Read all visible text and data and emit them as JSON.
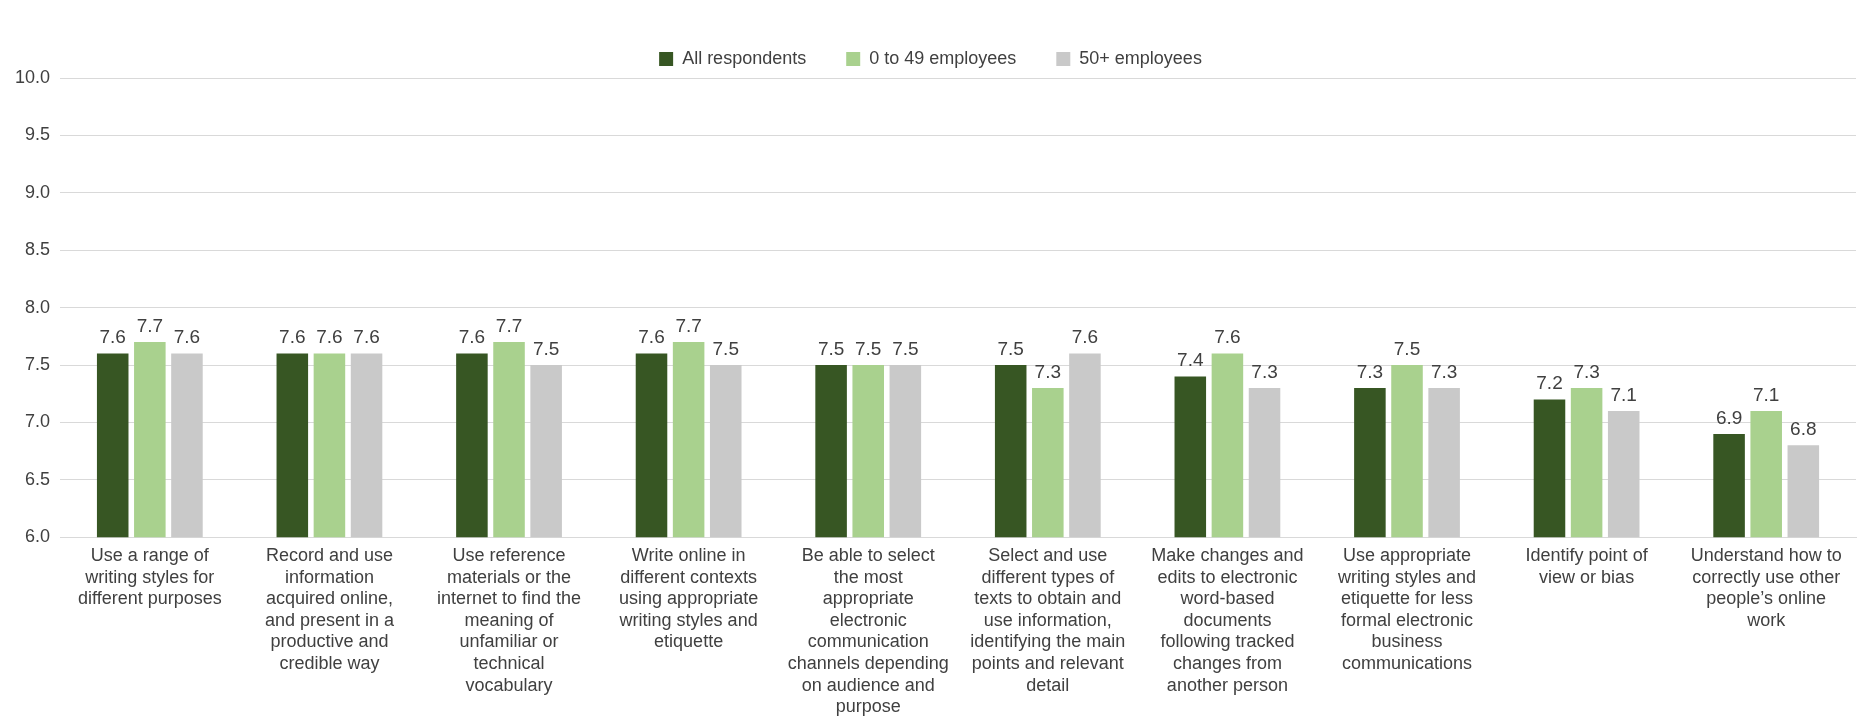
{
  "chart_data": {
    "type": "bar",
    "categories": [
      "Use a range of writing styles for different purposes",
      "Record and use information acquired online, and present in a productive and credible way",
      "Use reference materials or the internet to find the meaning of unfamiliar or technical vocabulary",
      "Write online in different contexts using appropriate writing styles and etiquette",
      "Be able to select the most appropriate electronic communication channels depending on audience and purpose",
      "Select and use different types of texts to obtain and use information, identifying the main points and relevant detail",
      "Make changes and edits to electronic word-based documents following tracked changes from another person",
      "Use appropriate writing styles and etiquette for less formal electronic business communications",
      "Identify point of view or bias",
      "Understand how to correctly use other people’s online work"
    ],
    "series": [
      {
        "name": "All respondents",
        "color": "#375623",
        "values": [
          7.6,
          7.6,
          7.6,
          7.6,
          7.5,
          7.5,
          7.4,
          7.3,
          7.2,
          6.9
        ]
      },
      {
        "name": "0 to 49 employees",
        "color": "#a9d18e",
        "values": [
          7.7,
          7.6,
          7.7,
          7.7,
          7.5,
          7.3,
          7.6,
          7.5,
          7.3,
          7.1
        ]
      },
      {
        "name": "50+ employees",
        "color": "#c9c9c9",
        "values": [
          7.6,
          7.6,
          7.5,
          7.5,
          7.5,
          7.6,
          7.3,
          7.3,
          7.1,
          6.8
        ]
      }
    ],
    "ylim": [
      6.0,
      10.0
    ],
    "yticks": [
      {
        "value": 6,
        "label": "6.0"
      },
      {
        "value": 6.5,
        "label": "6.5"
      },
      {
        "value": 7,
        "label": "7.0"
      },
      {
        "value": 7.5,
        "label": "7.5"
      },
      {
        "value": 8,
        "label": "8.0"
      },
      {
        "value": 8.5,
        "label": "8.5"
      },
      {
        "value": 9,
        "label": "9.0"
      },
      {
        "value": 9.5,
        "label": "9.5"
      },
      {
        "value": 10,
        "label": "10.0"
      }
    ],
    "grid": "y",
    "legend": "top",
    "data_labels": true
  }
}
